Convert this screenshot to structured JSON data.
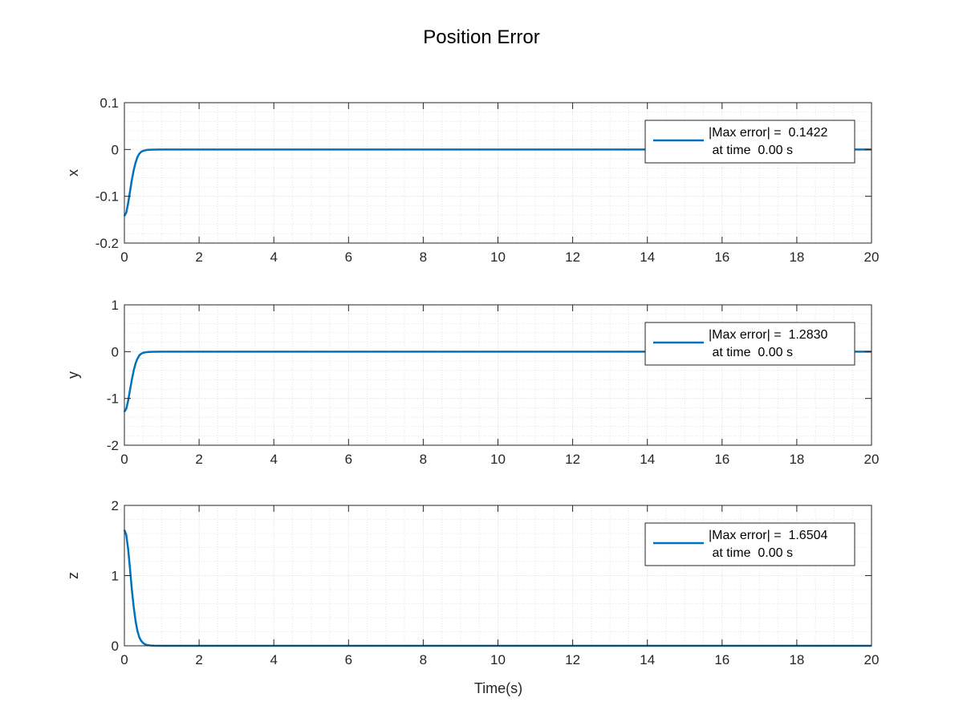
{
  "chart_data": {
    "type": "line",
    "title": "Position Error",
    "xlabel": "Time(s)",
    "xlim": [
      0,
      20
    ],
    "xticks": [
      0,
      2,
      4,
      6,
      8,
      10,
      12,
      14,
      16,
      18,
      20
    ],
    "grid": true,
    "minor_grid": true,
    "line_color": "#0072BD",
    "legend_placement": "top-right",
    "subplots": [
      {
        "ylabel": "x",
        "ylim": [
          -0.2,
          0.1
        ],
        "yticks": [
          -0.2,
          -0.1,
          0,
          0.1
        ],
        "ytick_labels": [
          "-0.2",
          "-0.1",
          "0",
          "0.1"
        ],
        "legend": [
          "|Max error| =  0.1422",
          " at time  0.00 s"
        ],
        "series": {
          "x": [
            0,
            0.05,
            0.1,
            0.15,
            0.2,
            0.25,
            0.3,
            0.35,
            0.4,
            0.45,
            0.5,
            0.6,
            0.7,
            0.8,
            1.0,
            20
          ],
          "y": [
            -0.1422,
            -0.135,
            -0.115,
            -0.09,
            -0.065,
            -0.044,
            -0.028,
            -0.016,
            -0.009,
            -0.005,
            -0.003,
            -0.001,
            -0.0005,
            -0.0002,
            0,
            0
          ]
        }
      },
      {
        "ylabel": "y",
        "ylim": [
          -2,
          1
        ],
        "yticks": [
          -2,
          -1,
          0,
          1
        ],
        "ytick_labels": [
          "-2",
          "-1",
          "0",
          "1"
        ],
        "legend": [
          "|Max error| =  1.2830",
          " at time  0.00 s"
        ],
        "series": {
          "x": [
            0,
            0.05,
            0.1,
            0.15,
            0.2,
            0.25,
            0.3,
            0.35,
            0.4,
            0.45,
            0.5,
            0.6,
            0.7,
            0.8,
            1.0,
            20
          ],
          "y": [
            -1.283,
            -1.22,
            -1.05,
            -0.82,
            -0.6,
            -0.4,
            -0.25,
            -0.15,
            -0.08,
            -0.045,
            -0.025,
            -0.01,
            -0.004,
            -0.002,
            0,
            0
          ]
        }
      },
      {
        "ylabel": "z",
        "ylim": [
          0,
          2
        ],
        "yticks": [
          0,
          1,
          2
        ],
        "ytick_labels": [
          "0",
          "1",
          "2"
        ],
        "legend": [
          "|Max error| =  1.6504",
          " at time  0.00 s"
        ],
        "series": {
          "x": [
            0,
            0.05,
            0.1,
            0.15,
            0.2,
            0.25,
            0.3,
            0.35,
            0.4,
            0.45,
            0.5,
            0.55,
            0.6,
            0.7,
            0.8,
            1.0,
            20
          ],
          "y": [
            1.6504,
            1.58,
            1.38,
            1.1,
            0.8,
            0.55,
            0.35,
            0.21,
            0.12,
            0.07,
            0.04,
            0.022,
            0.012,
            0.004,
            0.001,
            0,
            0
          ]
        }
      }
    ]
  }
}
